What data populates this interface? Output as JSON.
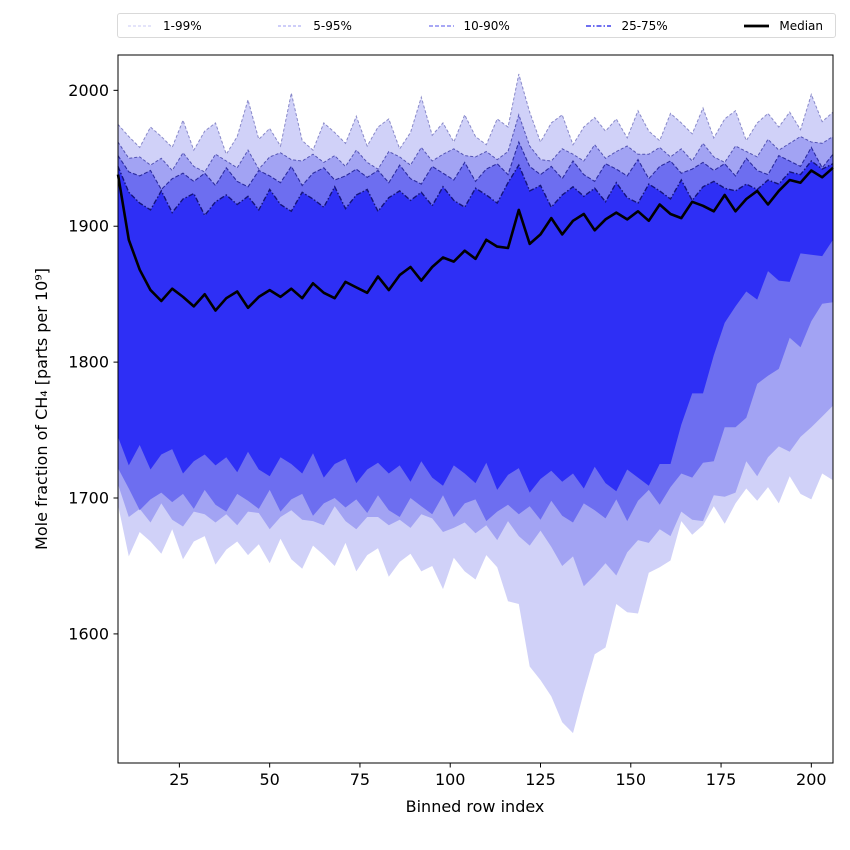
{
  "legend": {
    "items": [
      {
        "label": "1-99%",
        "color": "#d4d4f8",
        "dash": "3 2",
        "width": 1.2
      },
      {
        "label": "5-95%",
        "color": "#b0b0f5",
        "dash": "3 2",
        "width": 1.2
      },
      {
        "label": "10-90%",
        "color": "#8c8cf2",
        "dash": "4 2",
        "width": 1.4
      },
      {
        "label": "25-75%",
        "color": "#6f6ff0",
        "dash": "5 2 1.5 2",
        "width": 2.0
      },
      {
        "label": "Median",
        "color": "#000000",
        "dash": null,
        "width": 2.8
      }
    ]
  },
  "chart_data": {
    "type": "area",
    "title": "",
    "xlabel": "Binned row index",
    "ylabel": "Mole fraction of CH₄ [parts per 10⁹]",
    "xlim": [
      8,
      206
    ],
    "ylim": [
      1505,
      2026
    ],
    "xticks": [
      25,
      50,
      75,
      100,
      125,
      150,
      175,
      200
    ],
    "yticks": [
      1600,
      1700,
      1800,
      1900,
      2000
    ],
    "grid": false,
    "legend_position": "top",
    "x": [
      8,
      11,
      14,
      17,
      20,
      23,
      26,
      29,
      32,
      35,
      38,
      41,
      44,
      47,
      50,
      53,
      56,
      59,
      62,
      65,
      68,
      71,
      74,
      77,
      80,
      83,
      86,
      89,
      92,
      95,
      98,
      101,
      104,
      107,
      110,
      113,
      116,
      119,
      122,
      125,
      128,
      131,
      134,
      137,
      140,
      143,
      146,
      149,
      152,
      155,
      158,
      161,
      164,
      167,
      170,
      173,
      176,
      179,
      182,
      185,
      188,
      191,
      194,
      197,
      200,
      203,
      206
    ],
    "bands": [
      {
        "name": "1-99%",
        "upper": "p99",
        "lower": "p1",
        "fill": "#d0d1f8",
        "edge_color": "#18188c",
        "edge_opacity": 0.45,
        "edge_dash": "3 2",
        "edge_width": 1.0
      },
      {
        "name": "5-95%",
        "upper": "p95",
        "lower": "p5",
        "fill": "#a2a3f3",
        "edge_color": "#18188c",
        "edge_opacity": 0.62,
        "edge_dash": "3 2",
        "edge_width": 1.0
      },
      {
        "name": "10-90%",
        "upper": "p90",
        "lower": "p10",
        "fill": "#6d6ef0",
        "edge_color": "#18188c",
        "edge_opacity": 0.82,
        "edge_dash": "4 2",
        "edge_width": 1.1
      },
      {
        "name": "25-75%",
        "upper": "p75",
        "lower": "p25",
        "fill": "#2e2ff5",
        "edge_color": "#14147a",
        "edge_opacity": 1.0,
        "edge_dash": "5 2 1.5 2",
        "edge_width": 1.4
      }
    ],
    "percentiles": {
      "p99": [
        1975,
        1966,
        1958,
        1973,
        1966,
        1958,
        1978,
        1956,
        1970,
        1976,
        1953,
        1966,
        1993,
        1964,
        1972,
        1959,
        1998,
        1963,
        1956,
        1976,
        1969,
        1961,
        1981,
        1959,
        1973,
        1979,
        1957,
        1969,
        1995,
        1967,
        1976,
        1962,
        1982,
        1966,
        1960,
        1979,
        1973,
        2012,
        1984,
        1962,
        1976,
        1982,
        1960,
        1973,
        1980,
        1970,
        1979,
        1965,
        1985,
        1970,
        1963,
        1983,
        1976,
        1968,
        1987,
        1965,
        1979,
        1985,
        1963,
        1976,
        1983,
        1973,
        1984,
        1971,
        1997,
        1977,
        1984
      ],
      "p95": [
        1962,
        1950,
        1951,
        1945,
        1950,
        1941,
        1954,
        1944,
        1940,
        1953,
        1948,
        1943,
        1956,
        1942,
        1951,
        1954,
        1949,
        1948,
        1953,
        1947,
        1952,
        1944,
        1956,
        1947,
        1942,
        1955,
        1951,
        1945,
        1958,
        1948,
        1953,
        1957,
        1952,
        1951,
        1955,
        1949,
        1955,
        1982,
        1959,
        1949,
        1948,
        1957,
        1953,
        1948,
        1960,
        1950,
        1955,
        1959,
        1953,
        1953,
        1958,
        1951,
        1957,
        1948,
        1961,
        1951,
        1947,
        1959,
        1955,
        1951,
        1964,
        1956,
        1961,
        1966,
        1962,
        1961,
        1966
      ],
      "p90": [
        1952,
        1940,
        1937,
        1941,
        1927,
        1935,
        1939,
        1933,
        1939,
        1930,
        1943,
        1933,
        1929,
        1941,
        1937,
        1932,
        1944,
        1930,
        1939,
        1943,
        1934,
        1937,
        1942,
        1936,
        1941,
        1932,
        1945,
        1935,
        1931,
        1944,
        1939,
        1934,
        1947,
        1933,
        1942,
        1946,
        1938,
        1962,
        1944,
        1938,
        1944,
        1935,
        1948,
        1938,
        1933,
        1946,
        1942,
        1937,
        1949,
        1935,
        1944,
        1948,
        1939,
        1942,
        1947,
        1941,
        1946,
        1937,
        1950,
        1941,
        1938,
        1952,
        1948,
        1944,
        1958,
        1943,
        1953
      ],
      "p75": [
        1944,
        1925,
        1917,
        1912,
        1926,
        1910,
        1920,
        1924,
        1908,
        1918,
        1923,
        1916,
        1922,
        1912,
        1927,
        1916,
        1911,
        1925,
        1920,
        1914,
        1929,
        1913,
        1923,
        1927,
        1911,
        1921,
        1926,
        1919,
        1925,
        1915,
        1929,
        1919,
        1914,
        1928,
        1923,
        1917,
        1932,
        1945,
        1926,
        1930,
        1914,
        1923,
        1929,
        1922,
        1928,
        1918,
        1932,
        1921,
        1917,
        1931,
        1926,
        1920,
        1934,
        1919,
        1929,
        1933,
        1928,
        1926,
        1931,
        1927,
        1934,
        1931,
        1940,
        1938,
        1948,
        1942,
        1946
      ],
      "p25": [
        1745,
        1724,
        1739,
        1721,
        1732,
        1736,
        1718,
        1727,
        1732,
        1724,
        1730,
        1719,
        1734,
        1721,
        1716,
        1730,
        1725,
        1718,
        1733,
        1715,
        1725,
        1729,
        1711,
        1721,
        1726,
        1718,
        1724,
        1712,
        1727,
        1715,
        1709,
        1724,
        1718,
        1711,
        1726,
        1706,
        1717,
        1722,
        1704,
        1714,
        1720,
        1712,
        1718,
        1707,
        1723,
        1711,
        1705,
        1721,
        1715,
        1709,
        1725,
        1725,
        1754,
        1777,
        1777,
        1805,
        1829,
        1841,
        1852,
        1846,
        1867,
        1860,
        1859,
        1880,
        1879,
        1878,
        1890
      ],
      "p10": [
        1722,
        1707,
        1691,
        1699,
        1704,
        1697,
        1703,
        1692,
        1706,
        1695,
        1690,
        1703,
        1698,
        1692,
        1706,
        1690,
        1699,
        1703,
        1687,
        1696,
        1700,
        1693,
        1699,
        1689,
        1702,
        1691,
        1686,
        1700,
        1694,
        1688,
        1702,
        1686,
        1696,
        1699,
        1683,
        1690,
        1695,
        1688,
        1694,
        1684,
        1698,
        1687,
        1682,
        1696,
        1691,
        1685,
        1699,
        1683,
        1698,
        1706,
        1695,
        1708,
        1718,
        1715,
        1726,
        1727,
        1752,
        1752,
        1759,
        1784,
        1790,
        1795,
        1818,
        1811,
        1830,
        1843,
        1844
      ],
      "p5": [
        1710,
        1686,
        1692,
        1682,
        1696,
        1684,
        1679,
        1690,
        1688,
        1682,
        1688,
        1680,
        1690,
        1689,
        1677,
        1686,
        1691,
        1684,
        1683,
        1680,
        1694,
        1683,
        1677,
        1686,
        1686,
        1680,
        1684,
        1678,
        1688,
        1685,
        1675,
        1678,
        1682,
        1674,
        1680,
        1669,
        1683,
        1672,
        1665,
        1676,
        1664,
        1650,
        1657,
        1635,
        1643,
        1652,
        1643,
        1660,
        1669,
        1667,
        1677,
        1672,
        1690,
        1684,
        1683,
        1702,
        1701,
        1704,
        1727,
        1716,
        1730,
        1738,
        1734,
        1745,
        1752,
        1760,
        1768
      ],
      "p1": [
        1695,
        1657,
        1675,
        1668,
        1659,
        1677,
        1655,
        1668,
        1672,
        1651,
        1662,
        1668,
        1658,
        1666,
        1652,
        1670,
        1655,
        1648,
        1665,
        1658,
        1650,
        1667,
        1646,
        1658,
        1663,
        1642,
        1653,
        1659,
        1646,
        1650,
        1633,
        1656,
        1646,
        1640,
        1658,
        1649,
        1624,
        1622,
        1576,
        1566,
        1554,
        1535,
        1527,
        1557,
        1585,
        1590,
        1622,
        1616,
        1615,
        1645,
        1649,
        1654,
        1683,
        1673,
        1680,
        1694,
        1681,
        1696,
        1707,
        1698,
        1708,
        1696,
        1716,
        1703,
        1699,
        1718,
        1713
      ]
    },
    "median": {
      "name": "Median",
      "color": "#000000",
      "width": 2.6,
      "values": [
        1938,
        1890,
        1868,
        1853,
        1845,
        1854,
        1848,
        1841,
        1850,
        1838,
        1847,
        1852,
        1840,
        1848,
        1853,
        1848,
        1854,
        1847,
        1858,
        1851,
        1847,
        1859,
        1855,
        1851,
        1863,
        1853,
        1864,
        1870,
        1860,
        1870,
        1877,
        1874,
        1882,
        1876,
        1890,
        1885,
        1884,
        1912,
        1887,
        1894,
        1906,
        1894,
        1904,
        1909,
        1897,
        1905,
        1910,
        1905,
        1911,
        1904,
        1916,
        1909,
        1906,
        1918,
        1915,
        1911,
        1923,
        1911,
        1920,
        1926,
        1916,
        1926,
        1934,
        1932,
        1941,
        1936,
        1943
      ]
    }
  }
}
